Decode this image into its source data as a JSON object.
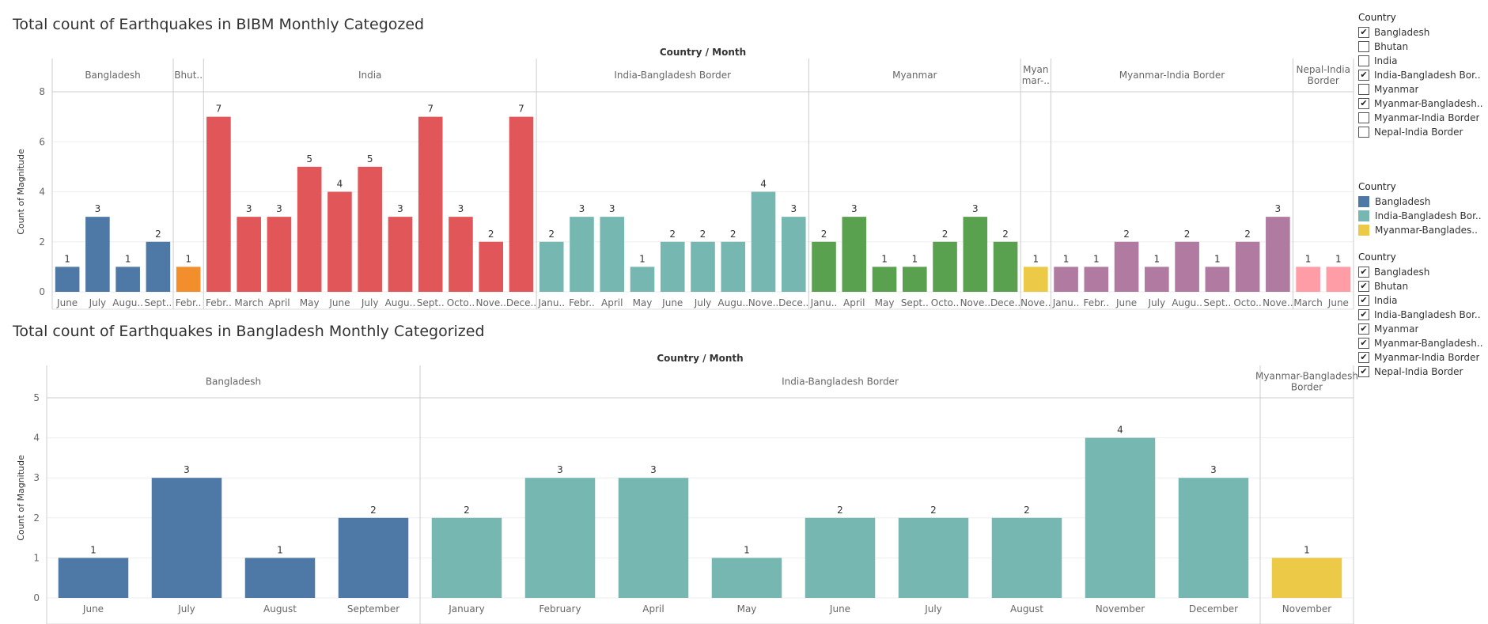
{
  "chart_data": [
    {
      "type": "bar",
      "title": "Total count of Earthquakes in BIBM Monthly Categozed",
      "header": "Country / Month",
      "ylabel": "Count of Magnitude",
      "ylim": [
        0,
        8
      ],
      "yticks": [
        "0",
        "2",
        "4",
        "6",
        "8"
      ],
      "groups": [
        {
          "name": "Bangladesh",
          "color": "#4e79a7",
          "months": [
            "June",
            "July",
            "Augu..",
            "Sept.."
          ],
          "values": [
            1,
            3,
            1,
            2
          ]
        },
        {
          "name": "Bhut..",
          "color": "#f28e2b",
          "months": [
            "Febr.."
          ],
          "values": [
            1
          ]
        },
        {
          "name": "India",
          "color": "#e15759",
          "months": [
            "Febr..",
            "March",
            "April",
            "May",
            "June",
            "July",
            "Augu..",
            "Sept..",
            "Octo..",
            "Nove..",
            "Dece.."
          ],
          "values": [
            7,
            3,
            3,
            5,
            4,
            5,
            3,
            7,
            3,
            2,
            7
          ]
        },
        {
          "name": "India-Bangladesh Border",
          "color": "#76b7b2",
          "months": [
            "Janu..",
            "Febr..",
            "April",
            "May",
            "June",
            "July",
            "Augu..",
            "Nove..",
            "Dece.."
          ],
          "values": [
            2,
            3,
            3,
            1,
            2,
            2,
            2,
            4,
            3
          ]
        },
        {
          "name": "Myanmar",
          "color": "#59a14f",
          "months": [
            "Janu..",
            "April",
            "May",
            "Sept..",
            "Octo..",
            "Nove..",
            "Dece.."
          ],
          "values": [
            2,
            3,
            1,
            1,
            2,
            3,
            2
          ]
        },
        {
          "name": "Myan mar-..",
          "color": "#edc948",
          "months": [
            "Nove.."
          ],
          "values": [
            1
          ]
        },
        {
          "name": "Myanmar-India Border",
          "color": "#b07aa1",
          "months": [
            "Janu..",
            "Febr..",
            "June",
            "July",
            "Augu..",
            "Sept..",
            "Octo..",
            "Nove.."
          ],
          "values": [
            1,
            1,
            2,
            1,
            2,
            1,
            2,
            3
          ]
        },
        {
          "name": "Nepal-India Border",
          "color": "#ff9da7",
          "months": [
            "March",
            "June"
          ],
          "values": [
            1,
            1
          ]
        }
      ]
    },
    {
      "type": "bar",
      "title": "Total count of Earthquakes in Bangladesh Monthly Categorized",
      "header": "Country / Month",
      "ylabel": "Count of Magnitude",
      "ylim": [
        0,
        5
      ],
      "yticks": [
        "0",
        "1",
        "2",
        "3",
        "4",
        "5"
      ],
      "groups": [
        {
          "name": "Bangladesh",
          "color": "#4e79a7",
          "months": [
            "June",
            "July",
            "August",
            "September"
          ],
          "values": [
            1,
            3,
            1,
            2
          ]
        },
        {
          "name": "India-Bangladesh Border",
          "color": "#76b7b2",
          "months": [
            "January",
            "February",
            "April",
            "May",
            "June",
            "July",
            "August",
            "November",
            "December"
          ],
          "values": [
            2,
            3,
            3,
            1,
            2,
            2,
            2,
            4,
            3
          ]
        },
        {
          "name": "Myanmar-Bangladesh Border",
          "color": "#edc948",
          "months": [
            "November"
          ],
          "values": [
            1
          ]
        }
      ]
    }
  ],
  "legends": {
    "filter1": {
      "title": "Country",
      "items": [
        {
          "label": "Bangladesh",
          "checked": true,
          "mark": "✔"
        },
        {
          "label": "Bhutan",
          "checked": false,
          "mark": ""
        },
        {
          "label": "India",
          "checked": false,
          "mark": ""
        },
        {
          "label": "India-Bangladesh Bor..",
          "checked": true,
          "mark": "✔"
        },
        {
          "label": "Myanmar",
          "checked": false,
          "mark": ""
        },
        {
          "label": "Myanmar-Bangladesh..",
          "checked": true,
          "mark": "✔"
        },
        {
          "label": "Myanmar-India Border",
          "checked": false,
          "mark": ""
        },
        {
          "label": "Nepal-India Border",
          "checked": false,
          "mark": ""
        }
      ]
    },
    "color": {
      "title": "Country",
      "items": [
        {
          "label": "Bangladesh",
          "color": "#4e79a7"
        },
        {
          "label": "India-Bangladesh Bor..",
          "color": "#76b7b2"
        },
        {
          "label": "Myanmar-Banglades..",
          "color": "#edc948"
        }
      ]
    },
    "filter2": {
      "title": "Country",
      "items": [
        {
          "label": "Bangladesh",
          "checked": true,
          "mark": "✔"
        },
        {
          "label": "Bhutan",
          "checked": true,
          "mark": "✔"
        },
        {
          "label": "India",
          "checked": true,
          "mark": "✔"
        },
        {
          "label": "India-Bangladesh Bor..",
          "checked": true,
          "mark": "✔"
        },
        {
          "label": "Myanmar",
          "checked": true,
          "mark": "✔"
        },
        {
          "label": "Myanmar-Bangladesh..",
          "checked": true,
          "mark": "✔"
        },
        {
          "label": "Myanmar-India Border",
          "checked": true,
          "mark": "✔"
        },
        {
          "label": "Nepal-India Border",
          "checked": true,
          "mark": "✔"
        }
      ]
    }
  }
}
